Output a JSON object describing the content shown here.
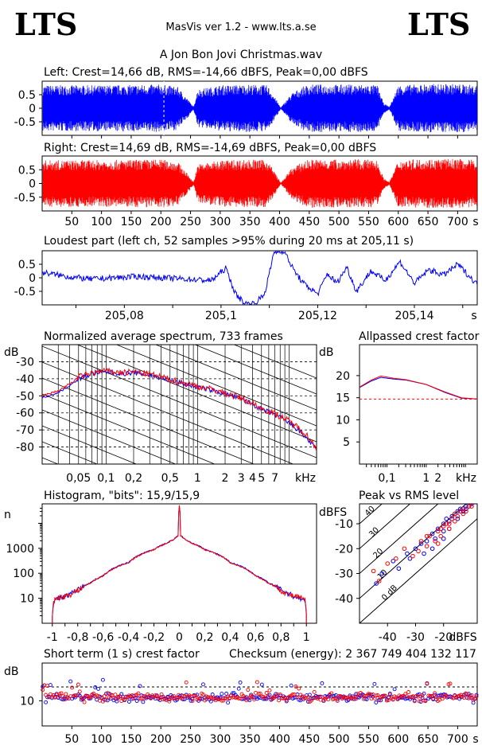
{
  "header": {
    "logo_left": "LTS",
    "logo_right": "LTS",
    "app_title": "MasVis ver 1.2 - www.lts.a.se",
    "file_title": "A Jon Bon Jovi Christmas.wav"
  },
  "colors": {
    "left_channel": "#0000ff",
    "right_channel": "#ff0000",
    "axis": "#000000"
  },
  "chart_data": [
    {
      "id": "left-waveform",
      "type": "area",
      "title": "Left: Crest=14,66 dB, RMS=-14,66 dBFS, Peak=0,00 dBFS",
      "yticks": [
        "0.5",
        "0",
        "-0.5"
      ],
      "ylim": [
        -1,
        1
      ],
      "xlim": [
        0,
        733
      ],
      "grid": false,
      "marker_x_s": 205.11,
      "series": [
        {
          "color": "#0000ff",
          "envelope_t": [
            0,
            8,
            40,
            100,
            200,
            228,
            245,
            255,
            262,
            300,
            350,
            380,
            395,
            402,
            420,
            440,
            445,
            455,
            500,
            540,
            565,
            575,
            585,
            600,
            650,
            700,
            733
          ],
          "envelope_a": [
            0.85,
            0.85,
            0.85,
            0.85,
            0.88,
            0.8,
            0.35,
            0.05,
            0.7,
            0.85,
            0.88,
            0.85,
            0.3,
            0.02,
            0.55,
            0.8,
            0.85,
            0.88,
            0.88,
            0.88,
            0.85,
            0.2,
            0.05,
            0.85,
            0.9,
            0.9,
            0.85
          ]
        }
      ]
    },
    {
      "id": "right-waveform",
      "type": "area",
      "title": "Right: Crest=14,69 dB, RMS=-14,69 dBFS, Peak=0,00 dBFS",
      "yticks": [
        "0.5",
        "0",
        "-0.5"
      ],
      "ylim": [
        -1,
        1
      ],
      "xlim": [
        0,
        733
      ],
      "xticks": [
        "50",
        "100",
        "150",
        "200",
        "250",
        "300",
        "350",
        "400",
        "450",
        "500",
        "550",
        "600",
        "650",
        "700",
        "s"
      ],
      "series": [
        {
          "color": "#ff0000",
          "envelope_t": [
            0,
            8,
            40,
            100,
            200,
            228,
            245,
            255,
            262,
            300,
            350,
            380,
            395,
            402,
            420,
            440,
            445,
            455,
            500,
            540,
            565,
            575,
            585,
            600,
            650,
            700,
            733
          ],
          "envelope_a": [
            0.85,
            0.85,
            0.85,
            0.85,
            0.88,
            0.8,
            0.35,
            0.05,
            0.7,
            0.85,
            0.88,
            0.85,
            0.3,
            0.02,
            0.55,
            0.8,
            0.85,
            0.88,
            0.88,
            0.88,
            0.85,
            0.2,
            0.05,
            0.85,
            0.9,
            0.9,
            0.85
          ]
        }
      ]
    },
    {
      "id": "loudest-part",
      "type": "line",
      "title": "Loudest part (left  ch, 52 samples >95% during 20 ms at 205,11 s)",
      "yticks": [
        "0.5",
        "0",
        "-0.5"
      ],
      "ylim": [
        -1,
        1
      ],
      "xlim": [
        205.063,
        205.153
      ],
      "xticks": [
        "205,08",
        "205,1",
        "205,12",
        "205,14",
        "s"
      ],
      "series": [
        {
          "color": "#0000ff",
          "x": [
            205.063,
            205.068,
            205.073,
            205.078,
            205.083,
            205.088,
            205.093,
            205.098,
            205.101,
            205.103,
            205.105,
            205.107,
            205.109,
            205.111,
            205.113,
            205.115,
            205.117,
            205.12,
            205.122,
            205.124,
            205.126,
            205.128,
            205.131,
            205.134,
            205.137,
            205.14,
            205.143,
            205.146,
            205.149,
            205.153
          ],
          "y": [
            0.2,
            0.05,
            -0.05,
            0.0,
            0.05,
            0.0,
            -0.05,
            -0.1,
            0.35,
            -0.6,
            -0.95,
            -0.95,
            -0.6,
            0.95,
            1.0,
            0.3,
            -0.2,
            -0.6,
            0.15,
            -0.2,
            0.4,
            -0.5,
            0.25,
            -0.1,
            0.6,
            -0.2,
            0.3,
            0.1,
            0.5,
            -0.25
          ]
        }
      ]
    },
    {
      "id": "spectrum",
      "type": "line",
      "title": "Normalized average spectrum, 733 frames",
      "ylabel": "dB",
      "xlabel": "kHz",
      "yticks": [
        "-30",
        "-40",
        "-50",
        "-60",
        "-70",
        "-80"
      ],
      "xticks": [
        "0,05",
        "0,1",
        "0,2",
        "0,5",
        "1",
        "2",
        "3",
        "4",
        "5",
        "7",
        "kHz"
      ],
      "ylim": [
        -90,
        -20
      ],
      "xlim": [
        0.02,
        20
      ],
      "xscale": "log",
      "grid": true,
      "series": [
        {
          "color": "#0000ff",
          "x": [
            0.02,
            0.03,
            0.04,
            0.05,
            0.07,
            0.1,
            0.15,
            0.2,
            0.3,
            0.5,
            0.7,
            1,
            1.5,
            2,
            3,
            4,
            5,
            7,
            10,
            15,
            20
          ],
          "y": [
            -51,
            -48,
            -44,
            -40,
            -37,
            -36,
            -37,
            -36.5,
            -38,
            -41,
            -43,
            -45,
            -47,
            -49,
            -52,
            -55,
            -58,
            -61,
            -66,
            -74,
            -82
          ]
        },
        {
          "color": "#ff0000",
          "x": [
            0.02,
            0.03,
            0.04,
            0.05,
            0.07,
            0.1,
            0.15,
            0.2,
            0.3,
            0.5,
            0.7,
            1,
            1.5,
            2,
            3,
            4,
            5,
            7,
            10,
            15,
            20
          ],
          "y": [
            -50,
            -47,
            -43,
            -39,
            -36.5,
            -35.5,
            -36.5,
            -36,
            -37.5,
            -40.5,
            -42.5,
            -44.5,
            -46.5,
            -48.5,
            -51.5,
            -54.5,
            -57.5,
            -60.5,
            -65,
            -72,
            -81
          ]
        }
      ]
    },
    {
      "id": "allpassed-crest",
      "type": "line",
      "title": "Allpassed crest factor",
      "ylabel": "dB",
      "xlabel": "kHz",
      "yticks": [
        "20",
        "15",
        "10",
        "5"
      ],
      "xticks": [
        "0,1",
        "1",
        "2",
        "kHz"
      ],
      "ylim": [
        0,
        27
      ],
      "xlim": [
        0.02,
        20
      ],
      "xscale": "log",
      "reference_line": 14.7,
      "series": [
        {
          "color": "#0000ff",
          "x": [
            0.02,
            0.04,
            0.07,
            0.15,
            0.3,
            1,
            3,
            8,
            20
          ],
          "y": [
            17.3,
            18.8,
            19.6,
            19.2,
            19.0,
            18.0,
            16.2,
            14.9,
            14.7
          ]
        },
        {
          "color": "#ff0000",
          "x": [
            0.02,
            0.04,
            0.07,
            0.15,
            0.3,
            1,
            3,
            8,
            20
          ],
          "y": [
            17.4,
            19.0,
            19.9,
            19.4,
            19.1,
            18.0,
            16.3,
            15.0,
            14.7
          ]
        }
      ]
    },
    {
      "id": "histogram",
      "type": "line",
      "title": "Histogram, \"bits\": 15,9/15,9",
      "ylabel": "n",
      "yticks": [
        "1000",
        "100",
        "10"
      ],
      "xticks": [
        "-1",
        "-0,8",
        "-0,6",
        "-0,4",
        "-0,2",
        "0",
        "0,2",
        "0,4",
        "0,6",
        "0,8",
        "1"
      ],
      "ylim": [
        1,
        60000
      ],
      "yscale": "log",
      "xlim": [
        -1.08,
        1.08
      ],
      "series": [
        {
          "color": "#0000ff",
          "x": [
            -1.0,
            -0.99,
            -0.95,
            -0.9,
            -0.85,
            -0.8,
            -0.7,
            -0.6,
            -0.4,
            -0.2,
            -0.1,
            -0.05,
            -0.01,
            0,
            0.01,
            0.05,
            0.1,
            0.2,
            0.4,
            0.6,
            0.7,
            0.8,
            0.85,
            0.9,
            0.95,
            0.99,
            1.0
          ],
          "y": [
            2,
            7,
            10,
            12,
            16,
            22,
            42,
            80,
            270,
            900,
            1600,
            2200,
            3200,
            50000,
            3200,
            2200,
            1600,
            900,
            270,
            80,
            42,
            22,
            16,
            12,
            10,
            7,
            2
          ]
        },
        {
          "color": "#ff0000",
          "x": [
            -1.0,
            -0.99,
            -0.95,
            -0.9,
            -0.85,
            -0.8,
            -0.7,
            -0.6,
            -0.4,
            -0.2,
            -0.1,
            -0.05,
            -0.01,
            0,
            0.01,
            0.05,
            0.1,
            0.2,
            0.4,
            0.6,
            0.7,
            0.8,
            0.85,
            0.9,
            0.95,
            0.99,
            1.0
          ],
          "y": [
            2,
            8,
            11,
            12,
            15,
            21,
            40,
            78,
            260,
            880,
            1580,
            2150,
            3150,
            50000,
            3150,
            2150,
            1580,
            880,
            260,
            78,
            40,
            21,
            15,
            12,
            11,
            8,
            2
          ]
        }
      ]
    },
    {
      "id": "peak-vs-rms",
      "type": "scatter",
      "title": "Peak vs RMS level",
      "ylabel": "dBFS",
      "xlabel": "dBFS",
      "yticks": [
        "-10",
        "-20",
        "-30",
        "-40"
      ],
      "xticks": [
        "-40",
        "-30",
        "-20",
        "dBFS"
      ],
      "ylim": [
        -50,
        -2
      ],
      "xlim": [
        -50,
        -8
      ],
      "diagonal_labels": [
        "40",
        "30",
        "20",
        "10",
        "0 dB"
      ],
      "series": [
        {
          "color": "#0000ff",
          "x": [
            -44,
            -42,
            -38,
            -36,
            -33,
            -32,
            -30,
            -28,
            -27,
            -26,
            -24,
            -23,
            -22,
            -20,
            -20,
            -19,
            -18,
            -17,
            -16,
            -15,
            -15,
            -14,
            -13,
            -12,
            -12,
            -11,
            -10,
            -20,
            -18,
            -24
          ],
          "y": [
            -34,
            -30,
            -25,
            -28,
            -22,
            -24,
            -20,
            -18,
            -22,
            -17,
            -14,
            -16,
            -12,
            -10,
            -13,
            -8,
            -9,
            -7,
            -6,
            -5,
            -8,
            -4,
            -5,
            -3,
            -4,
            -3,
            -2,
            -16,
            -12,
            -20
          ]
        },
        {
          "color": "#ff0000",
          "x": [
            -45,
            -43,
            -40,
            -37,
            -34,
            -31,
            -29,
            -28,
            -26,
            -25,
            -23,
            -22,
            -21,
            -20,
            -19,
            -18,
            -17,
            -16,
            -16,
            -15,
            -14,
            -13,
            -13,
            -12,
            -11,
            -10,
            -18,
            -22,
            -26,
            -21
          ],
          "y": [
            -29,
            -33,
            -26,
            -24,
            -20,
            -23,
            -21,
            -17,
            -19,
            -15,
            -17,
            -13,
            -15,
            -11,
            -10,
            -12,
            -8,
            -9,
            -6,
            -7,
            -5,
            -6,
            -4,
            -5,
            -3,
            -3,
            -10,
            -18,
            -15,
            -12
          ]
        }
      ]
    },
    {
      "id": "short-term-crest",
      "type": "scatter",
      "title": "Short term (1 s) crest factor",
      "checksum_label": "Checksum (energy):  2 367 749 404 132 117",
      "ylabel": "dB",
      "yticks": [
        "10"
      ],
      "xticks": [
        "50",
        "100",
        "150",
        "200",
        "250",
        "300",
        "350",
        "400",
        "450",
        "500",
        "550",
        "600",
        "650",
        "700",
        "s"
      ],
      "ylim": [
        0,
        25
      ],
      "xlim": [
        0,
        733
      ],
      "reference_line": 15.5,
      "series": [
        {
          "color": "#0000ff",
          "name": "",
          "mean": 11.3,
          "spread": 1.3
        },
        {
          "color": "#ff0000",
          "name": "",
          "mean": 11.5,
          "spread": 1.3
        }
      ]
    }
  ]
}
